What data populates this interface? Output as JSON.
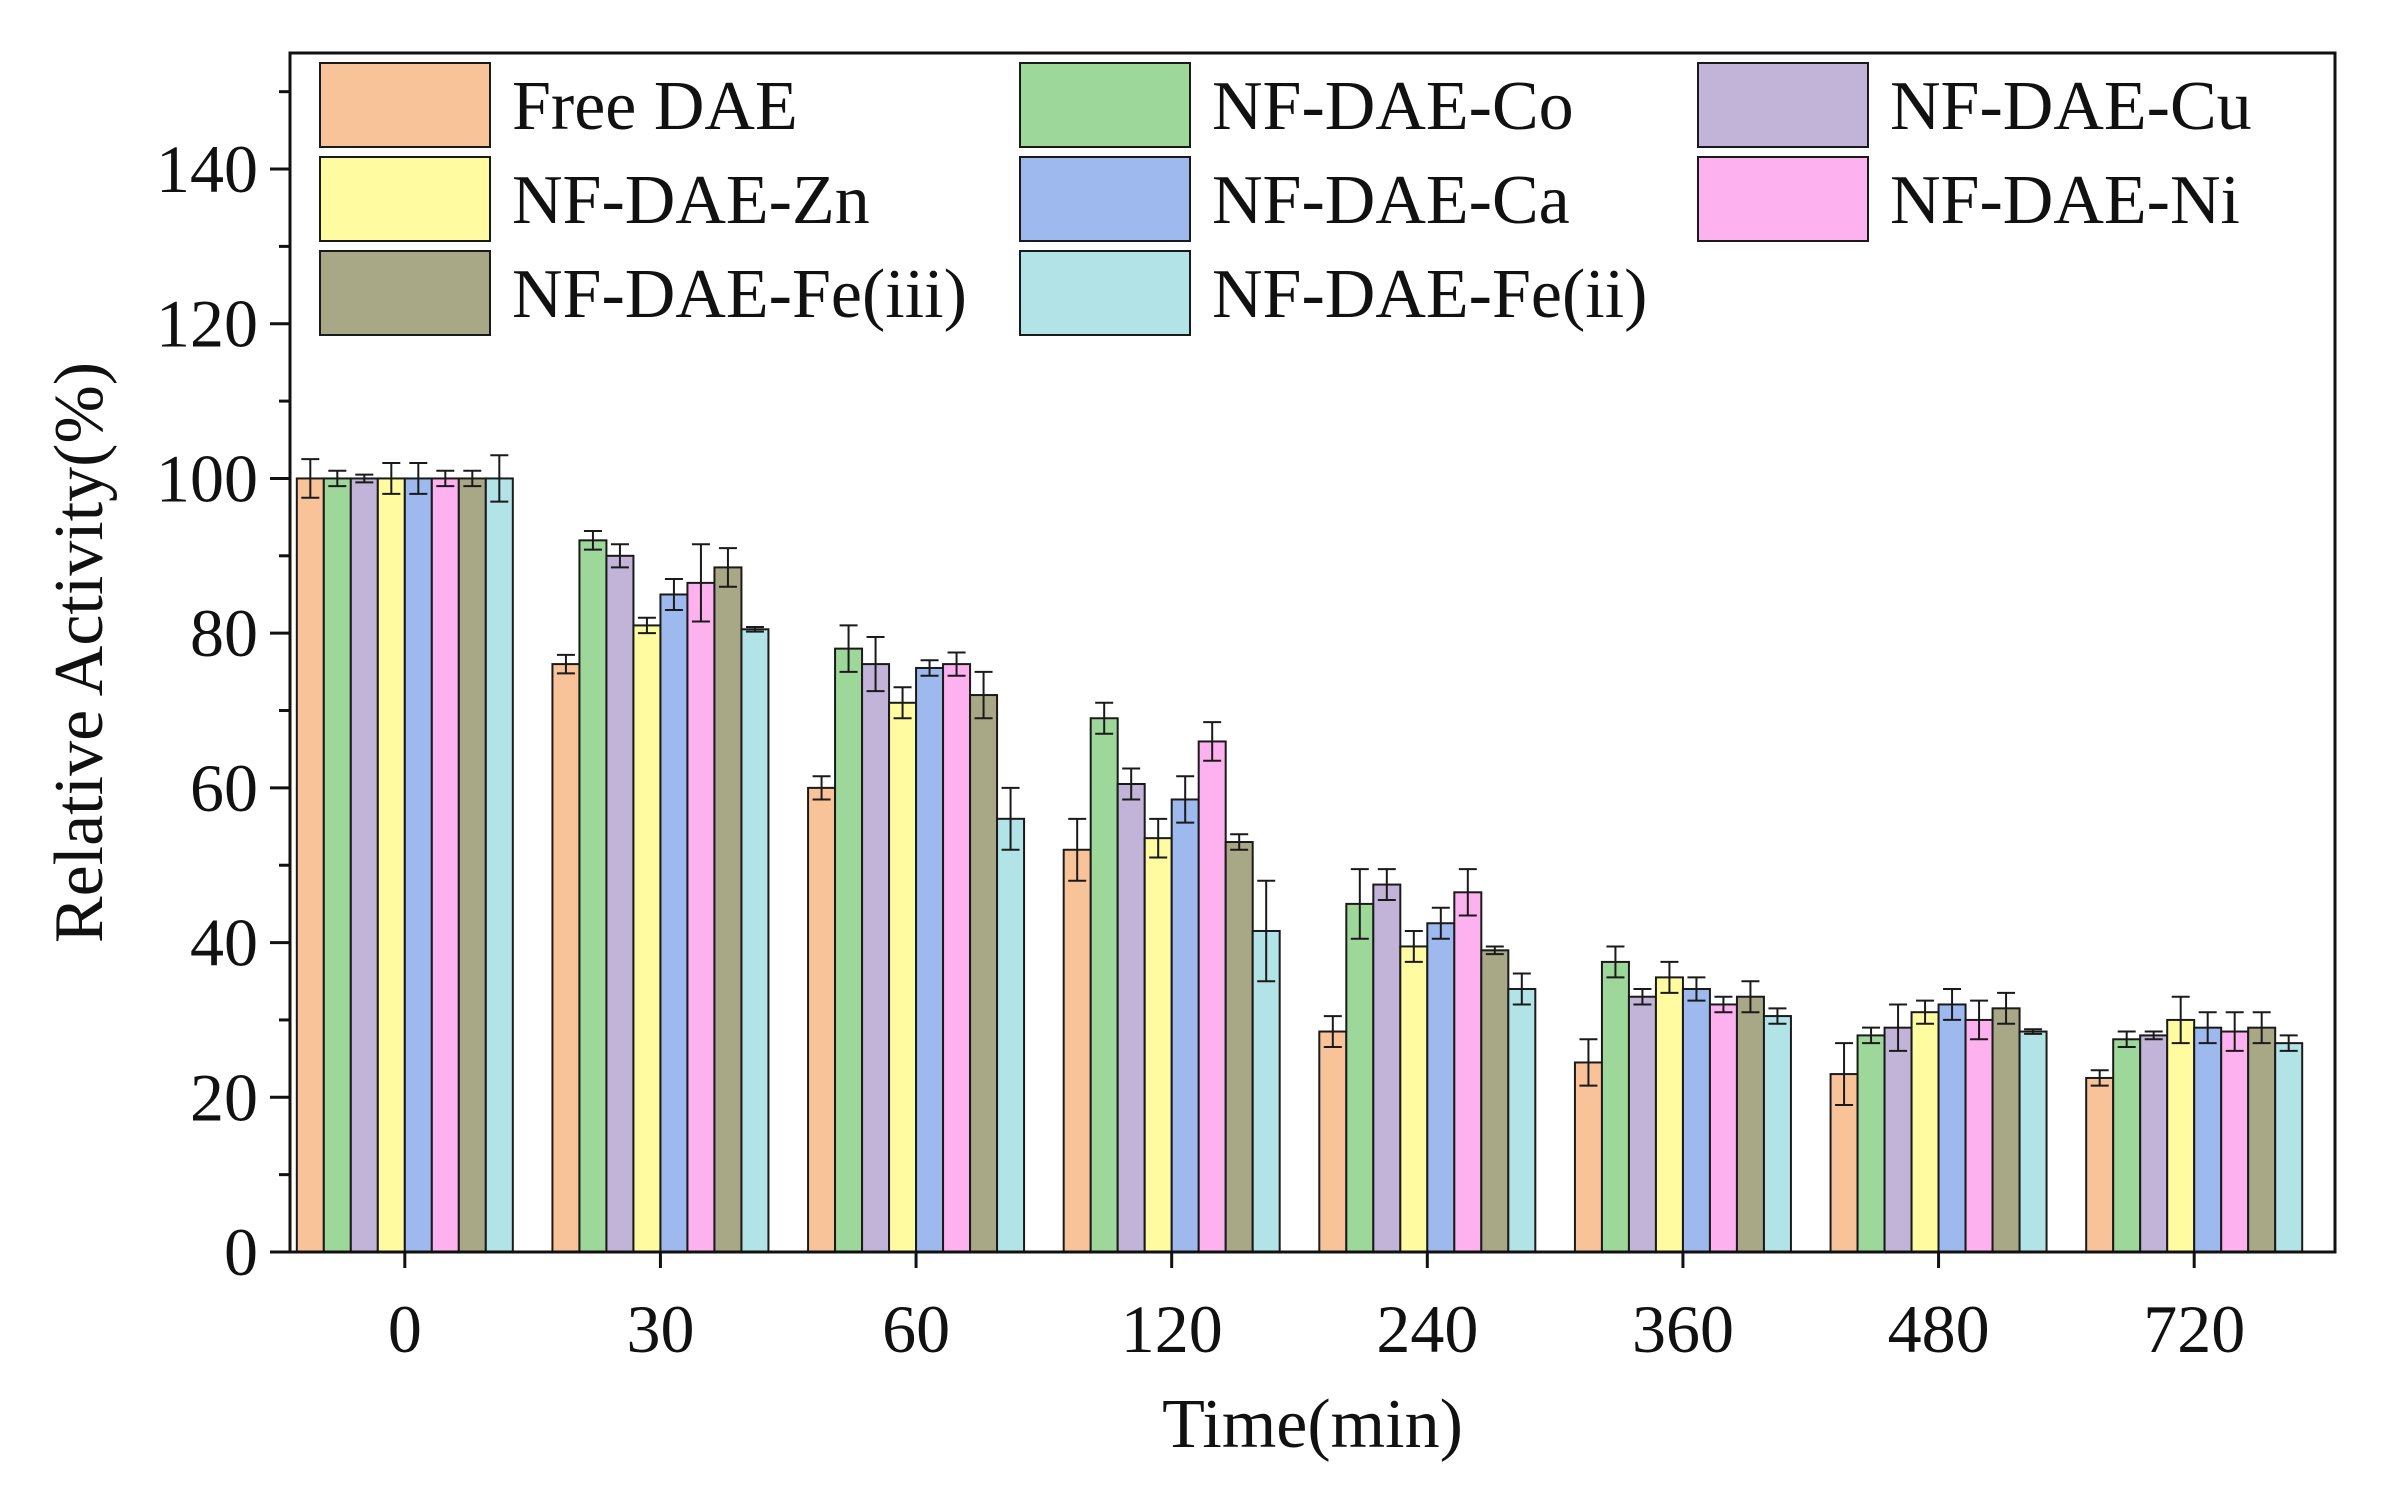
{
  "chart_data": {
    "type": "bar",
    "xlabel": "Time(min)",
    "ylabel": "Relative Activity(%)",
    "ylim": [
      0,
      155
    ],
    "yticks": [
      0,
      20,
      40,
      60,
      80,
      100,
      120,
      140
    ],
    "grid": false,
    "legend_position": "top",
    "categories": [
      "0",
      "30",
      "60",
      "120",
      "240",
      "360",
      "480",
      "720"
    ],
    "series": [
      {
        "name": "Free DAE",
        "color": "#F9C39A",
        "values": [
          100,
          76,
          60,
          52,
          28.5,
          24.5,
          23,
          22.5
        ],
        "errors": [
          2.5,
          1.2,
          1.5,
          4,
          2,
          3,
          4,
          1
        ]
      },
      {
        "name": "NF-DAE-Co",
        "color": "#9ED79A",
        "values": [
          100,
          92,
          78,
          69,
          45,
          37.5,
          28,
          27.5
        ],
        "errors": [
          1,
          1.2,
          3,
          2,
          4.5,
          2,
          1,
          1
        ]
      },
      {
        "name": "NF-DAE-Cu",
        "color": "#C2B3D9",
        "values": [
          100,
          90,
          76,
          60.5,
          47.5,
          33,
          29,
          28
        ],
        "errors": [
          0.5,
          1.5,
          3.5,
          2,
          2,
          1,
          3,
          0.5
        ]
      },
      {
        "name": "NF-DAE-Zn",
        "color": "#FFFBA0",
        "values": [
          100,
          81,
          71,
          53.5,
          39.5,
          35.5,
          31,
          30
        ],
        "errors": [
          2,
          1,
          2,
          2.5,
          2,
          2,
          1.5,
          3
        ]
      },
      {
        "name": "NF-DAE-Ca",
        "color": "#9EB9EE",
        "values": [
          100,
          85,
          75.5,
          58.5,
          42.5,
          34,
          32,
          29
        ],
        "errors": [
          2,
          2,
          1,
          3,
          2,
          1.5,
          2,
          2
        ]
      },
      {
        "name": "NF-DAE-Ni",
        "color": "#FDB1EE",
        "values": [
          100,
          86.5,
          76,
          66,
          46.5,
          32,
          30,
          28.5
        ],
        "errors": [
          1,
          5,
          1.5,
          2.5,
          3,
          1,
          2.5,
          2.5
        ]
      },
      {
        "name": "NF-DAE-Fe(iii)",
        "color": "#A8A886",
        "values": [
          100,
          88.5,
          72,
          53,
          39,
          33,
          31.5,
          29
        ],
        "errors": [
          1,
          2.5,
          3,
          1,
          0.5,
          2,
          2,
          2
        ]
      },
      {
        "name": "NF-DAE-Fe(ii)",
        "color": "#B2E3E6",
        "values": [
          100,
          80.5,
          56,
          41.5,
          34,
          30.5,
          28.5,
          27
        ],
        "errors": [
          3,
          0.3,
          4,
          6.5,
          2,
          1,
          0.3,
          1
        ]
      }
    ]
  }
}
